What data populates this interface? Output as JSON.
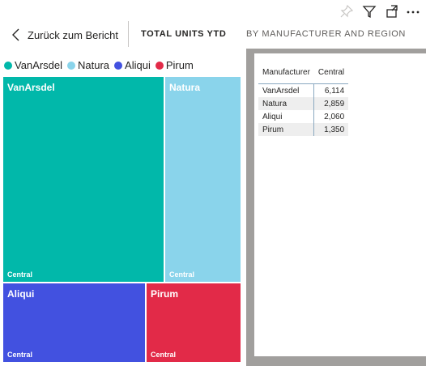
{
  "header": {
    "back_label": "Zurück zum Bericht",
    "title": "TOTAL UNITS YTD",
    "subtitle": "BY MANUFACTURER AND REGION"
  },
  "colors": {
    "VanArsdel": "#01B8AA",
    "Natura": "#8AD4EB",
    "Aliqui": "#4251E0",
    "Pirum": "#E22A48"
  },
  "table": {
    "headers": [
      "Manufacturer",
      "Central"
    ],
    "rows": [
      [
        "VanArsdel",
        "6,114"
      ],
      [
        "Natura",
        "2,859"
      ],
      [
        "Aliqui",
        "2,060"
      ],
      [
        "Pirum",
        "1,350"
      ]
    ]
  },
  "chart_data": {
    "type": "treemap",
    "title": "TOTAL UNITS YTD",
    "subtitle": "BY MANUFACTURER AND REGION",
    "legend": [
      "VanArsdel",
      "Natura",
      "Aliqui",
      "Pirum"
    ],
    "items": [
      {
        "name": "VanArsdel",
        "region": "Central",
        "value": 6114
      },
      {
        "name": "Natura",
        "region": "Central",
        "value": 2859
      },
      {
        "name": "Aliqui",
        "region": "Central",
        "value": 2060
      },
      {
        "name": "Pirum",
        "region": "Central",
        "value": 1350
      }
    ]
  }
}
